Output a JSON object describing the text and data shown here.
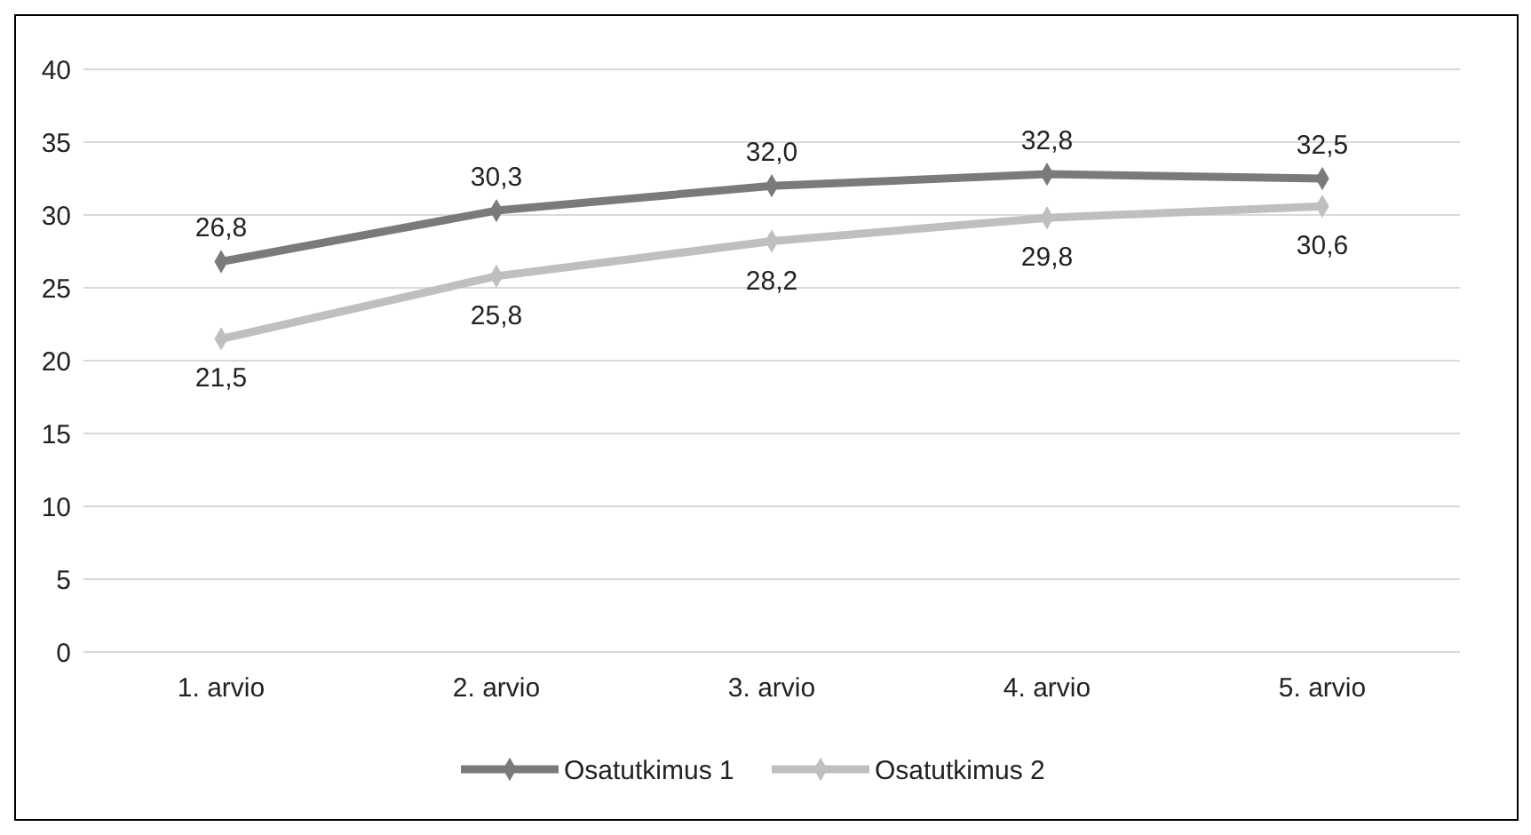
{
  "chart_data": {
    "type": "line",
    "categories": [
      "1. arvio",
      "2. arvio",
      "3. arvio",
      "4. arvio",
      "5. arvio"
    ],
    "series": [
      {
        "name": "Osatutkimus 1",
        "color": "#7a7a7a",
        "values": [
          26.8,
          30.3,
          32.0,
          32.8,
          32.5
        ],
        "value_labels": [
          "26,8",
          "30,3",
          "32,0",
          "32,8",
          "32,5"
        ]
      },
      {
        "name": "Osatutkimus 2",
        "color": "#bfbfbf",
        "values": [
          21.5,
          25.8,
          28.2,
          29.8,
          30.6
        ],
        "value_labels": [
          "21,5",
          "25,8",
          "28,2",
          "29,8",
          "30,6"
        ]
      }
    ],
    "ylim": [
      0,
      40
    ],
    "yticks": [
      0,
      5,
      10,
      15,
      20,
      25,
      30,
      35,
      40
    ],
    "grid": "y",
    "legend": "bottom",
    "marker": "diamond",
    "line_style": "solid"
  }
}
